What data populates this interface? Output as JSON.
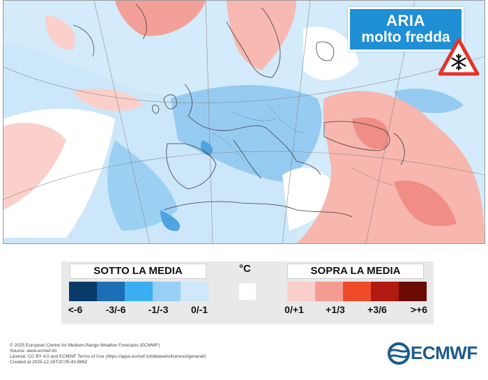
{
  "badge": {
    "line1": "ARIA",
    "line2": "molto fredda"
  },
  "warning_icon": "snowflake-warning-icon",
  "map": {
    "description_icon": "temperature-anomaly-map",
    "colors": {
      "sea": "#dce8f3",
      "neutral": "#ffffff",
      "cold_light": "#d3ebfb",
      "cold_mid": "#96cbf1",
      "cold_strong": "#4ea3e2",
      "warm_light": "#fbd0cb",
      "warm_mid": "#f3a099",
      "coast": "#3c3c3c"
    }
  },
  "legend": {
    "below_title": "SOTTO LA MEDIA",
    "above_title": "SOPRA LA MEDIA",
    "unit": "°C",
    "below_items": [
      {
        "label": "<-6",
        "color": "#0a3a68"
      },
      {
        "label": "-3/-6",
        "color": "#1c6fb4"
      },
      {
        "label": "-1/-3",
        "color": "#3aaef0"
      },
      {
        "label": "0/-1",
        "color": "#98d0f5"
      },
      {
        "label": "",
        "color": "#cfe8fa"
      }
    ],
    "neutral_color": "#ffffff",
    "above_items": [
      {
        "label": "0/+1",
        "color": "#fbd0cb"
      },
      {
        "label": "+1/3",
        "color": "#f49c92"
      },
      {
        "label": "+3/6",
        "color": "#ee4b2b"
      },
      {
        "label": ">+6",
        "color": "#b01a10"
      },
      {
        "label": "",
        "color": "#6a0b05"
      }
    ]
  },
  "credits": {
    "line1": "© 2025 European Centre for Medium-Range Weather Forecasts (ECMWF)",
    "line2": "Source: www.ecmwf.int",
    "line3": "Licence: CC BY 4.0 and ECMWF Terms of Use (https://apps.ecmwf.int/datasets/licences/general/)",
    "line4": "Created at 2025-12-16T20:05:43.889Z"
  },
  "logo": {
    "text": "ECMWF",
    "color": "#1c5b8d"
  }
}
